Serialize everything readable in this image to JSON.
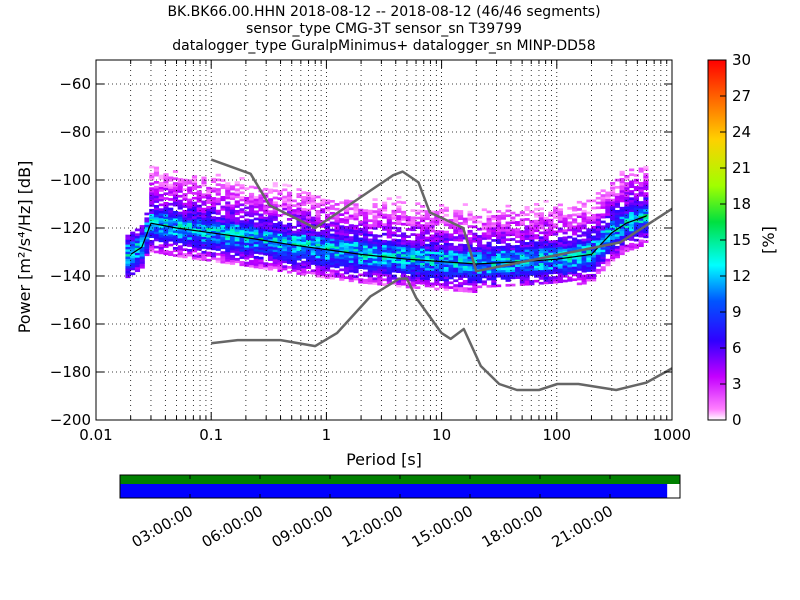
{
  "chart_data": {
    "type": "heatmap",
    "title_lines": [
      "BK.BK66.00.HHN   2018-08-12 -- 2018-08-12  (46/46 segments)",
      "sensor_type CMG-3T sensor_sn T39799",
      "datalogger_type GuralpMinimus+ datalogger_sn MINP-DD58"
    ],
    "xlabel": "Period [s]",
    "ylabel": "Power [m²/s⁴/Hz] [dB]",
    "x_scale": "log",
    "xlim": [
      0.01,
      1000
    ],
    "ylim": [
      -200,
      -50
    ],
    "x_ticks": [
      0.01,
      0.1,
      1,
      10,
      100,
      1000
    ],
    "x_tick_labels": [
      "0.01",
      "0.1",
      "1",
      "10",
      "100",
      "1000"
    ],
    "y_ticks": [
      -60,
      -80,
      -100,
      -120,
      -140,
      -160,
      -180,
      -200
    ],
    "y_tick_labels": [
      "−60",
      "−80",
      "−100",
      "−120",
      "−140",
      "−160",
      "−180",
      "−200"
    ],
    "grid": true,
    "colorbar": {
      "label": "[%]",
      "range": [
        0,
        30
      ],
      "ticks": [
        0,
        3,
        6,
        9,
        12,
        15,
        18,
        21,
        24,
        27,
        30
      ],
      "tick_labels": [
        "0",
        "3",
        "6",
        "9",
        "12",
        "15",
        "18",
        "21",
        "24",
        "27",
        "30"
      ],
      "colormap": "pqlx"
    },
    "noise_models": [
      {
        "label": "NHNM",
        "color": "#666666",
        "points": [
          [
            0.1,
            -91.5
          ],
          [
            0.22,
            -97.4
          ],
          [
            0.32,
            -110.5
          ],
          [
            0.8,
            -120
          ],
          [
            3.8,
            -98
          ],
          [
            4.6,
            -96.5
          ],
          [
            6.3,
            -101
          ],
          [
            7.9,
            -113.5
          ],
          [
            15.4,
            -120
          ],
          [
            20,
            -138
          ],
          [
            354.8,
            -126
          ],
          [
            1000,
            -112
          ]
        ]
      },
      {
        "label": "NLNM",
        "color": "#666666",
        "points": [
          [
            0.1,
            -168
          ],
          [
            0.17,
            -166.7
          ],
          [
            0.4,
            -166.7
          ],
          [
            0.8,
            -169.2
          ],
          [
            1.24,
            -163.7
          ],
          [
            2.4,
            -148.6
          ],
          [
            4.3,
            -141.1
          ],
          [
            5.0,
            -141.1
          ],
          [
            6.0,
            -149
          ],
          [
            10.0,
            -163.8
          ],
          [
            12.0,
            -166.2
          ],
          [
            15.6,
            -162.1
          ],
          [
            21.9,
            -177.5
          ],
          [
            31.6,
            -185
          ],
          [
            45,
            -187.5
          ],
          [
            70,
            -187.5
          ],
          [
            101,
            -185
          ],
          [
            154,
            -185
          ],
          [
            328,
            -187.5
          ],
          [
            600,
            -184.4
          ],
          [
            1000,
            -178.5
          ]
        ]
      }
    ],
    "mean_line": {
      "label": "mean",
      "color": "#000000",
      "points": [
        [
          0.02,
          -131
        ],
        [
          0.025,
          -128
        ],
        [
          0.03,
          -118
        ],
        [
          0.05,
          -120
        ],
        [
          0.1,
          -122
        ],
        [
          0.2,
          -124
        ],
        [
          0.5,
          -127
        ],
        [
          1,
          -129
        ],
        [
          2,
          -131
        ],
        [
          5,
          -133
        ],
        [
          10,
          -134
        ],
        [
          20,
          -135
        ],
        [
          50,
          -134
        ],
        [
          100,
          -133
        ],
        [
          200,
          -131
        ],
        [
          300,
          -122
        ],
        [
          400,
          -118
        ],
        [
          600,
          -115
        ]
      ]
    },
    "psd_distribution": {
      "description_bands": [
        {
          "period_range": [
            0.02,
            0.03
          ],
          "db_range": [
            -140,
            -116
          ],
          "peak_percent": 14
        },
        {
          "period_range": [
            0.03,
            600
          ],
          "db_core": "-121 to -138",
          "peak_percent": 16
        }
      ],
      "upper_spread_db": "-95 to -125",
      "lower_spread_db": "-128 to -145"
    },
    "data_availability": {
      "time_ticks": [
        "03:00:00",
        "06:00:00",
        "09:00:00",
        "12:00:00",
        "15:00:00",
        "18:00:00",
        "21:00:00"
      ],
      "time_tick_hours": [
        3,
        6,
        9,
        12,
        15,
        18,
        21
      ],
      "span_hours": [
        0,
        24
      ],
      "covered_until_hours": 23.45,
      "top_bar_color": "#008000",
      "bottom_bar_color": "#0000ff"
    }
  }
}
